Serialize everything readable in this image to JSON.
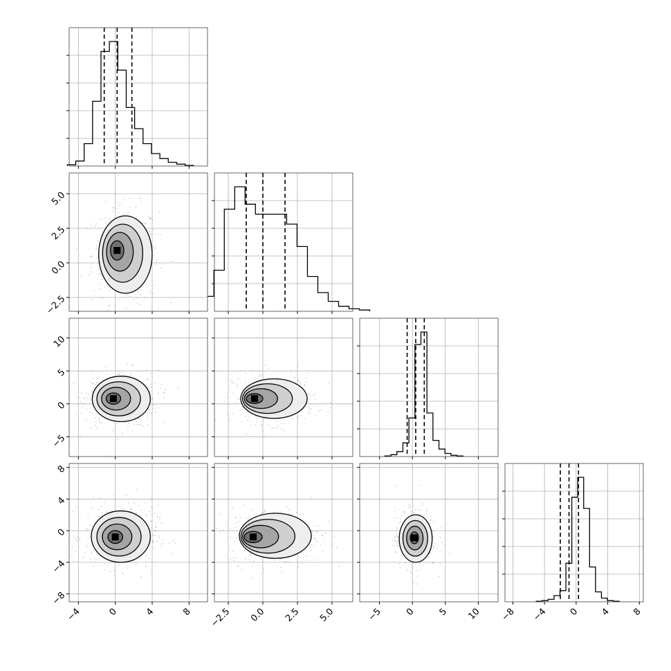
{
  "chart_data": {
    "type": "corner",
    "n_params": 4,
    "styles": {
      "line": "#000000",
      "grid": "#b0b0b0",
      "scatter": "#808080",
      "background": "#ffffff"
    },
    "grid": true,
    "params": [
      {
        "range": [
          -5,
          10
        ],
        "ticks": [
          -4,
          0,
          4,
          8
        ],
        "tick_labels": [
          "−4",
          "0",
          "4",
          "8"
        ]
      },
      {
        "range": [
          -3.5,
          6.5
        ],
        "ticks": [
          -2.5,
          0.0,
          2.5,
          5.0
        ],
        "tick_labels": [
          "−2.5",
          "0.0",
          "2.5",
          "5.0"
        ]
      },
      {
        "range": [
          -8,
          13
        ],
        "ticks": [
          -5,
          0,
          5,
          10
        ],
        "tick_labels": [
          "−5",
          "0",
          "5",
          "10"
        ]
      },
      {
        "range": [
          -9,
          8.5
        ],
        "ticks": [
          -8,
          -4,
          0,
          4,
          8
        ],
        "tick_labels": [
          "−8",
          "−4",
          "0",
          "4",
          "8"
        ]
      }
    ],
    "histograms": [
      {
        "param": 0,
        "quantiles": [
          -1.2,
          0.2,
          1.8
        ],
        "normalized_counts": [
          0.01,
          0.04,
          0.18,
          0.52,
          0.92,
          1.0,
          0.77,
          0.47,
          0.3,
          0.18,
          0.1,
          0.06,
          0.03,
          0.015,
          0.005
        ]
      },
      {
        "param": 1,
        "quantiles": [
          -1.2,
          0.0,
          1.6
        ],
        "normalized_counts": [
          0.05,
          0.12,
          0.33,
          0.82,
          1.0,
          0.86,
          0.78,
          0.78,
          0.78,
          0.7,
          0.52,
          0.28,
          0.15,
          0.08,
          0.04,
          0.02,
          0.01
        ]
      },
      {
        "param": 2,
        "quantiles": [
          -0.8,
          0.5,
          1.8
        ],
        "normalized_counts": [
          0.005,
          0.015,
          0.04,
          0.11,
          0.31,
          0.9,
          1.0,
          0.35,
          0.13,
          0.06,
          0.025,
          0.01,
          0.005
        ]
      },
      {
        "param": 3,
        "quantiles": [
          -2.0,
          -0.9,
          0.3
        ],
        "normalized_counts": [
          0.005,
          0.01,
          0.02,
          0.05,
          0.09,
          0.31,
          0.84,
          1.0,
          0.75,
          0.28,
          0.08,
          0.03,
          0.01,
          0.005
        ]
      }
    ],
    "pairs": [
      {
        "x_param": 0,
        "y_param": 1,
        "peak_x": 0.2,
        "peak_y": 0.9,
        "extent": {
          "x": [
            -1.8,
            4.0
          ],
          "y": [
            -2.2,
            3.4
          ]
        }
      },
      {
        "x_param": 0,
        "y_param": 2,
        "peak_x": -0.2,
        "peak_y": 0.8,
        "extent": {
          "x": [
            -2.5,
            3.8
          ],
          "y": [
            -2.7,
            4.2
          ]
        }
      },
      {
        "x_param": 1,
        "y_param": 2,
        "peak_x": -0.6,
        "peak_y": 0.8,
        "extent": {
          "x": [
            -1.6,
            3.2
          ],
          "y": [
            -2.2,
            3.8
          ]
        }
      },
      {
        "x_param": 0,
        "y_param": 3,
        "peak_x": 0.0,
        "peak_y": -0.8,
        "extent": {
          "x": [
            -2.6,
            3.8
          ],
          "y": [
            -4.0,
            2.5
          ]
        }
      },
      {
        "x_param": 1,
        "y_param": 3,
        "peak_x": -0.7,
        "peak_y": -0.8,
        "extent": {
          "x": [
            -1.7,
            3.5
          ],
          "y": [
            -3.5,
            2.2
          ]
        }
      },
      {
        "x_param": 2,
        "y_param": 3,
        "peak_x": 0.3,
        "peak_y": -0.9,
        "extent": {
          "x": [
            -2.0,
            3.0
          ],
          "y": [
            -4.0,
            2.0
          ]
        }
      }
    ]
  }
}
